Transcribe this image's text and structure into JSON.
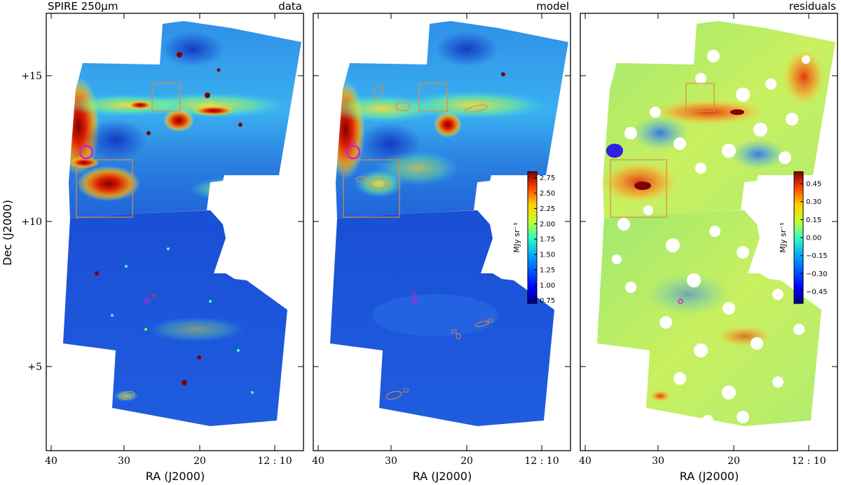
{
  "chart_data": [
    {
      "type": "heatmap",
      "title": "SPIRE 250μm",
      "panel_label": "data",
      "xlabel": "RA (J2000)",
      "ylabel": "Dec (J2000)",
      "x_ticks": [
        "40",
        "30",
        "20",
        "12 : 10"
      ],
      "y_ticks": [
        "+15",
        "+10",
        "+5"
      ]
    },
    {
      "type": "heatmap",
      "panel_label": "model",
      "xlabel": "RA (J2000)",
      "x_ticks": [
        "40",
        "30",
        "20",
        "12 : 10"
      ],
      "colorbar": {
        "label": "MJy sr⁻¹",
        "ticks": [
          "2.75",
          "2.50",
          "2.25",
          "2.00",
          "1.75",
          "1.50",
          "1.25",
          "1.00",
          "0.75"
        ],
        "range": [
          0.7,
          2.85
        ]
      },
      "region_labels": [
        "N",
        "G",
        "20",
        "21",
        "22"
      ]
    },
    {
      "type": "heatmap",
      "panel_label": "residuals",
      "xlabel": "RA (J2000)",
      "x_ticks": [
        "40",
        "30",
        "20",
        "12 : 10"
      ],
      "colorbar": {
        "label": "MJy sr⁻¹",
        "ticks": [
          "0.45",
          "0.30",
          "0.15",
          "0.00",
          "−0.15",
          "−0.30",
          "−0.45"
        ],
        "range": [
          -0.55,
          0.55
        ]
      }
    }
  ],
  "colors": {
    "frame": "#000000",
    "region_outline": "#e08a3c",
    "highlight_circle": "#d020c8"
  }
}
